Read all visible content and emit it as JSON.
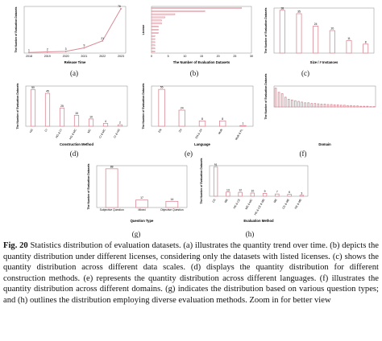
{
  "figure": {
    "caption_label": "Fig. 20",
    "caption_text": "Statistics distribution of evaluation datasets. (a) illustrates the quantity trend over time. (b) depicts the quantity distribution under different licenses, considering only the datasets with listed licenses. (c) shows the quantity distribution across different data scales. (d) displays the quantity distribution for different construction methods. (e) represents the quantity distribution across different languages. (f) illustrates the quantity distribution across different domains. (g) indicates the distribution based on various question types; and (h) outlines the distribution employing diverse evaluation methods. Zoom in for better view",
    "sub_labels": [
      "(a)",
      "(b)",
      "(c)",
      "(d)",
      "(e)",
      "(f)",
      "(g)",
      "(h)"
    ]
  },
  "chart_data": [
    {
      "id": "a",
      "type": "line",
      "xlabel": "Release Time",
      "ylabel": "The Number of Evaluation Datasets",
      "x": [
        "2018",
        "2019",
        "2020",
        "2021",
        "2022",
        "2023"
      ],
      "values": [
        1,
        2,
        3,
        9,
        21,
        76
      ],
      "data_labels": [
        "1",
        "2",
        "3",
        "9",
        "21",
        "76"
      ],
      "ylim": [
        0,
        80
      ]
    },
    {
      "id": "b",
      "type": "bar",
      "orientation": "horizontal",
      "xlabel": "The Number of Evaluation Datasets",
      "ylabel": "License",
      "values": [
        27,
        16,
        7,
        4,
        3,
        3,
        2,
        2,
        2,
        1,
        1,
        1,
        1,
        1,
        1
      ],
      "xlim": [
        0,
        30
      ],
      "xticks": [
        "0",
        "5",
        "10",
        "15",
        "20",
        "25",
        "30"
      ]
    },
    {
      "id": "c",
      "type": "bar",
      "xlabel": "Size / # Instances",
      "ylabel": "The Number of Evaluation Datasets",
      "values": [
        38,
        35,
        24,
        20,
        11,
        8
      ],
      "data_labels": [
        "38",
        "35",
        "24",
        "20",
        "11",
        "8"
      ],
      "ylim": [
        0,
        40
      ]
    },
    {
      "id": "d",
      "type": "bar",
      "xlabel": "Construction Method",
      "ylabel": "The Number of Evaluation Datasets",
      "categories": [
        "HG",
        "CI",
        "HG & CI",
        "HG & MC",
        "MC",
        "CI & MC",
        "CI & HG"
      ],
      "values": [
        50,
        45,
        25,
        15,
        10,
        4,
        2
      ],
      "data_labels": [
        "50",
        "45",
        "25",
        "15",
        "10",
        "4",
        "2"
      ],
      "ylim": [
        0,
        55
      ]
    },
    {
      "id": "e",
      "type": "bar",
      "xlabel": "Language",
      "ylabel": "The Number of Evaluation Datasets",
      "categories": [
        "EN",
        "ZH",
        "EN & ZH",
        "Multi",
        "Multi & PL"
      ],
      "values": [
        55,
        24,
        8,
        8,
        1
      ],
      "data_labels": [
        "55",
        "24",
        "8",
        "8",
        "1"
      ],
      "ylim": [
        0,
        60
      ]
    },
    {
      "id": "f",
      "type": "bar",
      "xlabel": "Domain",
      "ylabel": "The Number of Evaluation Datasets",
      "values": [
        54,
        42,
        38,
        28,
        22,
        20,
        18,
        16,
        14,
        12,
        12,
        10,
        10,
        9,
        8,
        8,
        7,
        7,
        6,
        6,
        5,
        5,
        4,
        4,
        3,
        3,
        2,
        2,
        2,
        1,
        1
      ],
      "ylim": [
        0,
        60
      ]
    },
    {
      "id": "g",
      "type": "bar",
      "xlabel": "Question Type",
      "ylabel": "The Number of Evaluation Datasets",
      "categories": [
        "Subjective Question",
        "Mixed",
        "Objective Question"
      ],
      "values": [
        88,
        17,
        14
      ],
      "data_labels": [
        "88",
        "17",
        "14"
      ],
      "ylim": [
        0,
        95
      ]
    },
    {
      "id": "h",
      "type": "bar",
      "xlabel": "Evaluation Method",
      "ylabel": "The Number of Evaluation Datasets",
      "categories": [
        "CE",
        "ME",
        "HE & CE",
        "ME & MC",
        "HE & CE & ME",
        "ME",
        "CE & ME",
        "HE & ME"
      ],
      "values": [
        91,
        13,
        12,
        10,
        9,
        7,
        6,
        3
      ],
      "data_labels": [
        "91",
        "13",
        "12",
        "10",
        "9",
        "7",
        "6",
        "3"
      ],
      "ylim": [
        0,
        95
      ]
    }
  ]
}
